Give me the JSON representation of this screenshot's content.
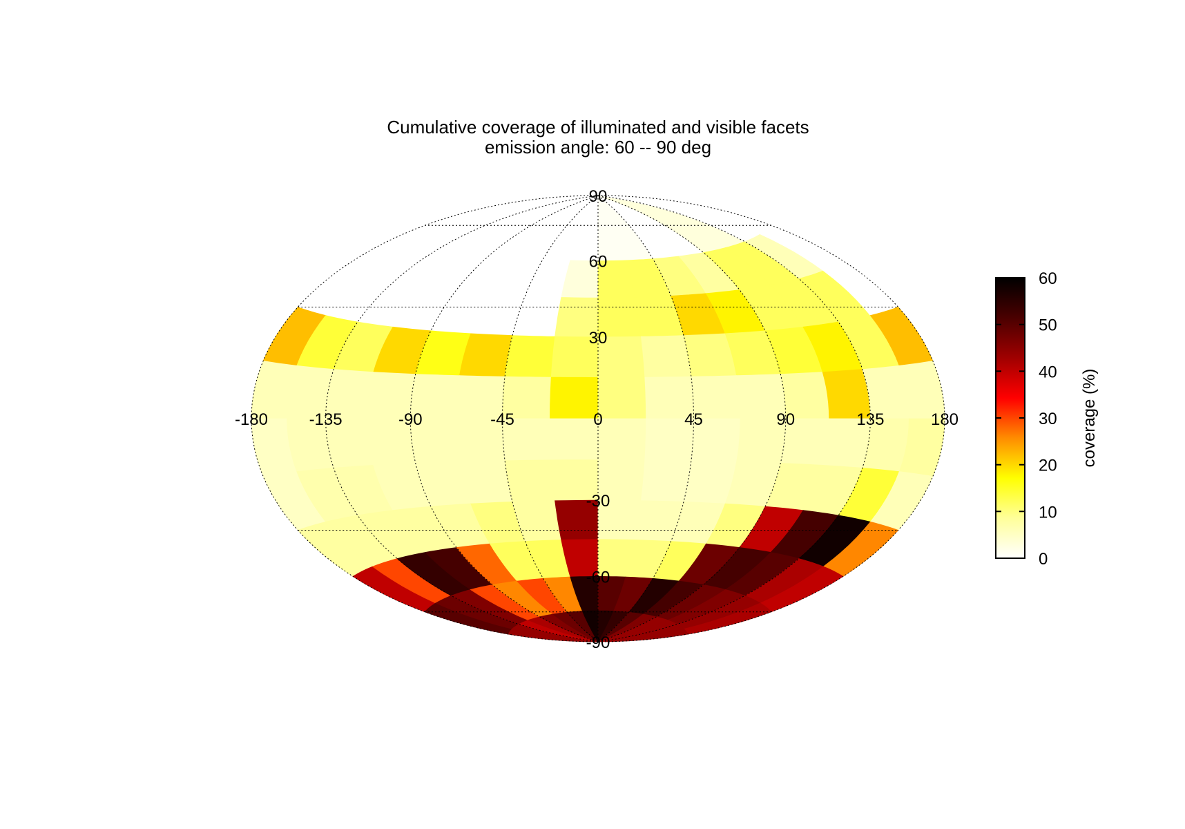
{
  "chart_data": {
    "type": "heatmap",
    "projection": "hammer-aitoff",
    "title": "Cumulative coverage of illuminated and visible facets",
    "subtitle": "emission angle: 60 -- 90 deg",
    "x_ticks": [
      "-180",
      "-135",
      "-90",
      "-45",
      "0",
      "45",
      "90",
      "135",
      "180"
    ],
    "x_tick_values": [
      -180,
      -135,
      -90,
      -45,
      0,
      45,
      90,
      135,
      180
    ],
    "y_ticks": [
      "90",
      "60",
      "30",
      "-30",
      "-60",
      "-90"
    ],
    "y_tick_values": [
      90,
      60,
      30,
      -30,
      -60,
      -90
    ],
    "xlim": [
      -180,
      180
    ],
    "ylim": [
      -90,
      90
    ],
    "grid": true,
    "grid_lon_step": 45,
    "grid_lat_values": [
      60,
      30,
      -30,
      -60
    ],
    "colorbar": {
      "label": "coverage (%)",
      "range": [
        0,
        60
      ],
      "ticks": [
        "0",
        "10",
        "20",
        "30",
        "40",
        "50",
        "60"
      ],
      "tick_values": [
        0,
        10,
        20,
        30,
        40,
        50,
        60
      ],
      "colors": [
        "#ffffff",
        "#ffff9a",
        "#ffff00",
        "#ff8c00",
        "#ff0000",
        "#a00000",
        "#4a0000",
        "#000000"
      ],
      "placement": "right"
    },
    "grid_cells": {
      "lon_start": -180,
      "lon_step": 22.5,
      "lat_bands": [
        {
          "lat_min": 60,
          "lat_max": 90,
          "values": [
            0,
            0,
            0,
            0,
            0,
            0,
            0,
            0,
            1,
            1,
            0,
            0,
            3,
            3,
            0,
            0
          ]
        },
        {
          "lat_min": 45,
          "lat_max": 60,
          "values": [
            0,
            0,
            0,
            0,
            0,
            0,
            0,
            3,
            12,
            12,
            10,
            8,
            12,
            12,
            6,
            0
          ]
        },
        {
          "lat_min": 30,
          "lat_max": 45,
          "values": [
            0,
            0,
            0,
            0,
            0,
            0,
            0,
            10,
            12,
            12,
            20,
            18,
            12,
            12,
            12,
            0
          ]
        },
        {
          "lat_min": 15,
          "lat_max": 30,
          "values": [
            22,
            14,
            12,
            20,
            16,
            20,
            14,
            12,
            10,
            8,
            10,
            12,
            14,
            18,
            12,
            22
          ]
        },
        {
          "lat_min": 0,
          "lat_max": 15,
          "values": [
            6,
            6,
            6,
            6,
            6,
            6,
            8,
            18,
            10,
            6,
            6,
            6,
            8,
            20,
            6,
            6
          ]
        },
        {
          "lat_min": -15,
          "lat_max": 0,
          "values": [
            5,
            6,
            6,
            6,
            6,
            6,
            6,
            6,
            6,
            5,
            5,
            6,
            6,
            6,
            7,
            8
          ]
        },
        {
          "lat_min": -30,
          "lat_max": -15,
          "values": [
            5,
            7,
            7,
            6,
            6,
            6,
            8,
            8,
            6,
            5,
            5,
            6,
            8,
            8,
            14,
            6
          ]
        },
        {
          "lat_min": -45,
          "lat_max": -30,
          "values": [
            8,
            8,
            8,
            8,
            8,
            10,
            8,
            44,
            6,
            6,
            6,
            10,
            40,
            52,
            58,
            26
          ]
        },
        {
          "lat_min": -60,
          "lat_max": -45,
          "values": [
            40,
            30,
            54,
            52,
            28,
            12,
            12,
            40,
            10,
            10,
            12,
            48,
            52,
            50,
            42,
            40
          ]
        },
        {
          "lat_min": -75,
          "lat_max": -60,
          "values": [
            50,
            48,
            46,
            30,
            26,
            30,
            26,
            56,
            50,
            48,
            56,
            52,
            48,
            46,
            44,
            42
          ]
        },
        {
          "lat_min": -90,
          "lat_max": -75,
          "values": [
            44,
            44,
            40,
            42,
            46,
            48,
            50,
            58,
            56,
            54,
            50,
            46,
            44,
            44,
            44,
            44
          ]
        }
      ]
    }
  }
}
